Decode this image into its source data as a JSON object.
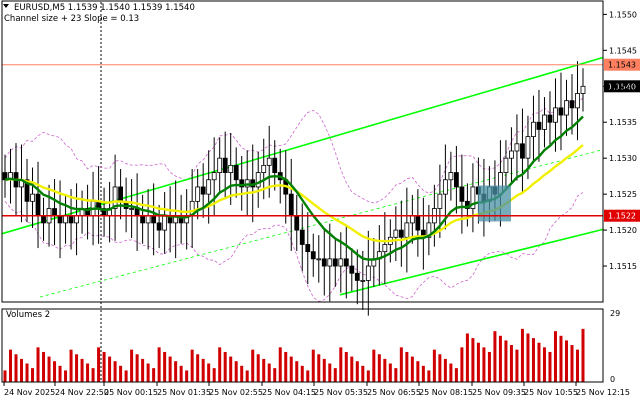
{
  "header": {
    "symbol_line": "EURUSD,M5  1.1539 1.1540 1.1539 1.1540",
    "indicator_line": "Channel size + 23 Slope = 0.13"
  },
  "volume_panel": {
    "title": "Volumes 2",
    "scale_max": "29",
    "scale_min": "0"
  },
  "colors": {
    "background": "#ffffff",
    "candle": "#000000",
    "channel": "#00ff00",
    "ma_green": "#008000",
    "ma_yellow": "#f0f000",
    "bollinger": "#cc66cc",
    "horizontal_red": "#e00000",
    "level_orange": "#ff8060",
    "volume_bar": "#d00000",
    "highlight_box": "#4a90a4"
  },
  "chart_data": {
    "type": "candlestick",
    "symbol": "EURUSD",
    "timeframe": "M5",
    "ylim": [
      1.151,
      1.1552
    ],
    "y_ticks": [
      "1.1550",
      "1.1545",
      "1.1540",
      "1.1535",
      "1.1530",
      "1.1525",
      "1.1520",
      "1.1515"
    ],
    "x_ticks": [
      "24 Nov 2025",
      "24 Nov 22:50",
      "25 Nov 00:15",
      "25 Nov 01:35",
      "25 Nov 02:55",
      "25 Nov 04:15",
      "25 Nov 05:35",
      "25 Nov 06:55",
      "25 Nov 08:15",
      "25 Nov 09:35",
      "25 Nov 10:55",
      "25 Nov 12:15"
    ],
    "price_tags": {
      "current": "1.1540",
      "orange_level": "1.1543",
      "red_level": "1.1522"
    },
    "levels": {
      "orange": 1.1543,
      "red": 1.1522
    },
    "close": [
      1.1527,
      1.1528,
      1.1526,
      1.1527,
      1.1524,
      1.1525,
      1.1522,
      1.1521,
      1.1523,
      1.1522,
      1.1521,
      1.1522,
      1.1521,
      1.1522,
      1.1523,
      1.1522,
      1.1524,
      1.1523,
      1.1522,
      1.1523,
      1.1526,
      1.1524,
      1.1523,
      1.1523,
      1.1522,
      1.1521,
      1.1522,
      1.1521,
      1.152,
      1.1522,
      1.1521,
      1.1522,
      1.1521,
      1.1522,
      1.1524,
      1.1526,
      1.1525,
      1.1527,
      1.1528,
      1.153,
      1.1528,
      1.1529,
      1.1527,
      1.1526,
      1.1527,
      1.1526,
      1.1528,
      1.1529,
      1.153,
      1.1528,
      1.1527,
      1.1525,
      1.1522,
      1.152,
      1.1518,
      1.1517,
      1.1516,
      1.1516,
      1.1515,
      1.1516,
      1.1515,
      1.1516,
      1.1515,
      1.1514,
      1.1513,
      1.1513,
      1.1515,
      1.1516,
      1.1517,
      1.1518,
      1.1519,
      1.152,
      1.1519,
      1.1521,
      1.1522,
      1.152,
      1.1519,
      1.1521,
      1.1523,
      1.1525,
      1.1527,
      1.1528,
      1.1526,
      1.1524,
      1.1523,
      1.1526,
      1.1525,
      1.1524,
      1.1526,
      1.1525,
      1.1528,
      1.153,
      1.1531,
      1.1532,
      1.153,
      1.1533,
      1.1535,
      1.1534,
      1.1536,
      1.1535,
      1.1537,
      1.1536,
      1.1538,
      1.1537,
      1.1539,
      1.154
    ]
  }
}
